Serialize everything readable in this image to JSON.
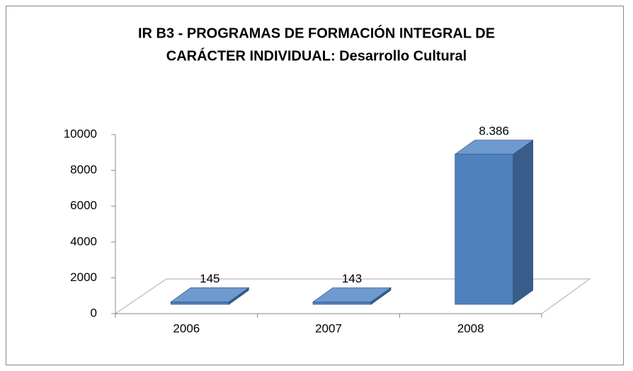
{
  "chart_data": {
    "type": "bar3d",
    "title": [
      "IR B3 - PROGRAMAS DE FORMACIÓN INTEGRAL DE",
      "CARÁCTER INDIVIDUAL: Desarrollo Cultural"
    ],
    "categories": [
      "2006",
      "2007",
      "2008"
    ],
    "values": [
      145,
      143,
      8386
    ],
    "value_labels": [
      "145",
      "143",
      "8.386"
    ],
    "color": "#4f81bd",
    "ylim": [
      0,
      10000
    ],
    "yticks": [
      0,
      2000,
      4000,
      6000,
      8000,
      10000
    ]
  }
}
